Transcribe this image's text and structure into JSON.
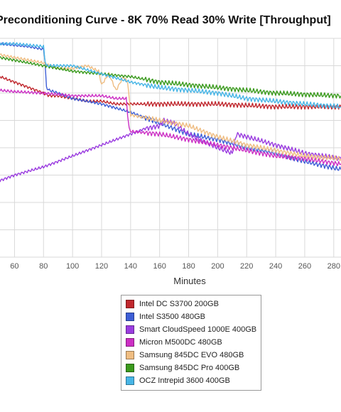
{
  "chart_data": {
    "type": "line",
    "title": "Preconditioning Curve - 8K 70% Read 30% Write [Throughput]",
    "xlabel": "Minutes",
    "ylabel": "",
    "xlim": [
      50,
      285
    ],
    "ylim": [
      0,
      80
    ],
    "xticks": [
      60,
      80,
      100,
      120,
      140,
      160,
      180,
      200,
      220,
      240,
      260,
      280
    ],
    "grid": true,
    "legend_position": "bottom",
    "series": [
      {
        "name": "Intel DC S3700 200GB",
        "color": "#c0272d",
        "x": [
          50,
          55,
          60,
          70,
          80,
          84,
          90,
          100,
          110,
          120,
          130,
          140,
          160,
          200,
          240,
          285
        ],
        "y": [
          66,
          65,
          64,
          62,
          60,
          59,
          59,
          58,
          57,
          57,
          56,
          56,
          56,
          56,
          55,
          55
        ]
      },
      {
        "name": "Intel S3500 480GB",
        "color": "#3d5ed6",
        "x": [
          50,
          60,
          70,
          80,
          81,
          82,
          84,
          90,
          100,
          120,
          140,
          160,
          180,
          200,
          220,
          240,
          260,
          285
        ],
        "y": [
          78,
          77.5,
          77,
          76,
          72,
          62,
          61,
          60,
          58,
          56,
          53,
          49,
          45,
          43,
          40,
          38,
          35,
          32
        ]
      },
      {
        "name": "Smart CloudSpeed 1000E 400GB",
        "color": "#9b3de0",
        "x": [
          50,
          60,
          80,
          100,
          120,
          140,
          150,
          160,
          163,
          170,
          180,
          200,
          210,
          213,
          220,
          240,
          260,
          285
        ],
        "y": [
          28,
          30,
          33,
          37,
          41,
          45,
          47,
          48,
          50,
          49,
          45,
          40,
          38,
          45,
          44,
          41,
          38,
          36
        ]
      },
      {
        "name": "Micron M500DC 480GB",
        "color": "#cc2fc4",
        "x": [
          50,
          60,
          80,
          100,
          120,
          130,
          137,
          138,
          139,
          140,
          160,
          180,
          200,
          220,
          240,
          260,
          285
        ],
        "y": [
          61,
          60.5,
          60,
          59,
          59,
          58,
          58,
          52,
          47,
          46,
          45,
          43,
          41,
          39,
          37,
          36,
          34
        ]
      },
      {
        "name": "Samsung 845DC EVO 480GB",
        "color": "#efbd82",
        "x": [
          50,
          60,
          70,
          80,
          84,
          90,
          100,
          110,
          118,
          120,
          125,
          130,
          135,
          138,
          140,
          160,
          180,
          200,
          220,
          240,
          260,
          285
        ],
        "y": [
          74,
          73,
          72,
          71,
          70,
          69,
          69,
          70,
          68,
          63,
          67,
          61,
          66,
          64,
          52,
          50,
          48,
          44,
          41,
          39,
          37,
          36
        ]
      },
      {
        "name": "Samsung 845DC Pro 400GB",
        "color": "#3a9a1d",
        "x": [
          50,
          60,
          80,
          100,
          120,
          140,
          160,
          180,
          200,
          220,
          240,
          260,
          285
        ],
        "y": [
          73,
          72,
          70,
          68,
          67,
          66,
          64,
          63,
          62,
          61,
          60,
          59.5,
          59
        ]
      },
      {
        "name": "OCZ Intrepid 3600 400GB",
        "color": "#47b5e6",
        "x": [
          50,
          60,
          70,
          80,
          81,
          82,
          84,
          90,
          100,
          120,
          140,
          160,
          180,
          200,
          220,
          240,
          260,
          285
        ],
        "y": [
          78,
          78,
          77.5,
          77,
          72,
          70,
          70,
          70,
          70,
          67,
          64,
          62,
          61,
          60,
          58,
          57,
          56,
          55
        ]
      }
    ]
  }
}
